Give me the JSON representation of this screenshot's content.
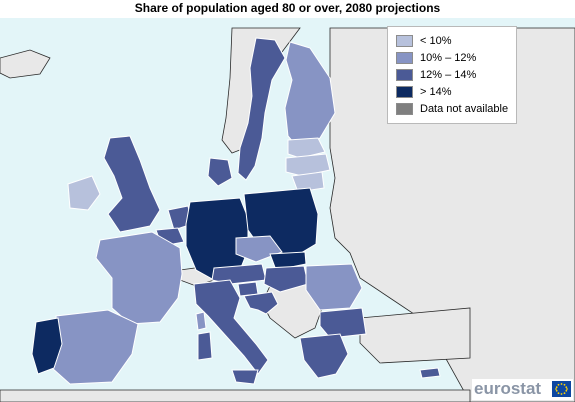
{
  "title": "Share of population aged 80 or over, 2080 projections",
  "legend": {
    "items": [
      {
        "label": "< 10%",
        "color": "#b7c1dc"
      },
      {
        "label": "10% – 12%",
        "color": "#8794c4"
      },
      {
        "label": "12% – 14%",
        "color": "#4b5a96"
      },
      {
        "label": "> 14%",
        "color": "#0d2a61"
      },
      {
        "label": "Data not available",
        "color": "#7f7f7f"
      }
    ]
  },
  "colors": {
    "sea": "#e3f5f8",
    "non_eu_land": "#e8e8e8",
    "border": "#ffffff",
    "outside_border": "#2a2a2a"
  },
  "logo": {
    "text": "eurostat",
    "flag": "EU-flag"
  }
}
